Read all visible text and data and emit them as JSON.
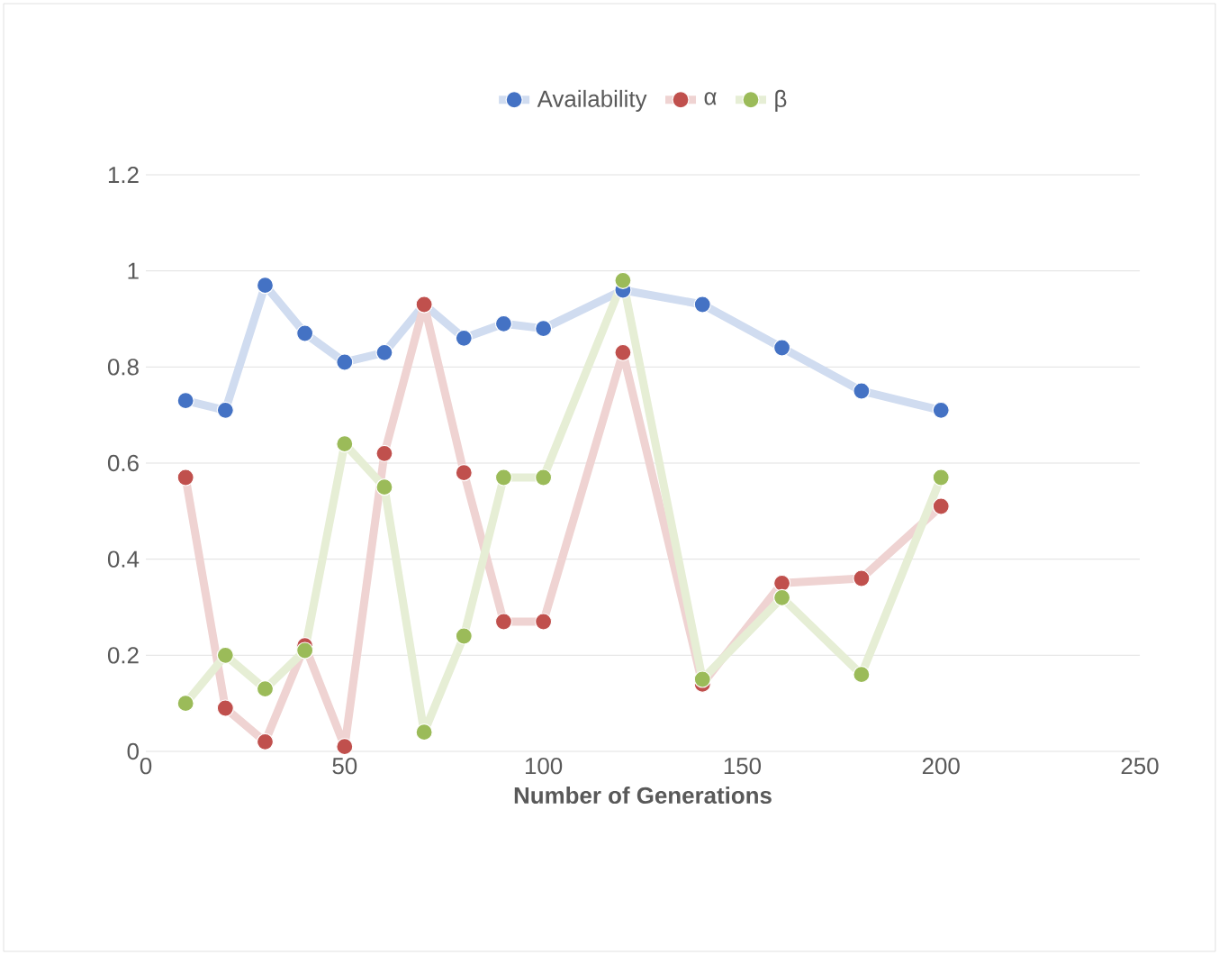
{
  "chart_data": {
    "type": "line",
    "xlabel": "Number of Generations",
    "x": [
      10,
      20,
      30,
      40,
      50,
      60,
      70,
      80,
      90,
      100,
      120,
      140,
      160,
      180,
      200
    ],
    "series": [
      {
        "name": "Availability",
        "color": "#4472c4",
        "values": [
          0.73,
          0.71,
          0.97,
          0.87,
          0.81,
          0.83,
          0.93,
          0.86,
          0.89,
          0.88,
          0.96,
          0.93,
          0.84,
          0.75,
          0.71
        ]
      },
      {
        "name": "α",
        "color": "#c0504d",
        "values": [
          0.57,
          0.09,
          0.02,
          0.22,
          0.01,
          0.62,
          0.93,
          0.58,
          0.27,
          0.27,
          0.83,
          0.14,
          0.35,
          0.36,
          0.51
        ]
      },
      {
        "name": "β",
        "color": "#9bbb59",
        "values": [
          0.1,
          0.2,
          0.13,
          0.21,
          0.64,
          0.55,
          0.04,
          0.24,
          0.57,
          0.57,
          0.98,
          0.15,
          0.32,
          0.16,
          0.57
        ]
      }
    ],
    "xlim": [
      0,
      250
    ],
    "xticks": [
      0,
      50,
      100,
      150,
      200,
      250
    ],
    "ylim": [
      0,
      1.2
    ],
    "yticks": [
      0,
      0.2,
      0.4,
      0.6,
      0.8,
      1,
      1.2
    ],
    "grid": "y",
    "legend": "top",
    "marker": "circle",
    "line_style": "solid"
  }
}
